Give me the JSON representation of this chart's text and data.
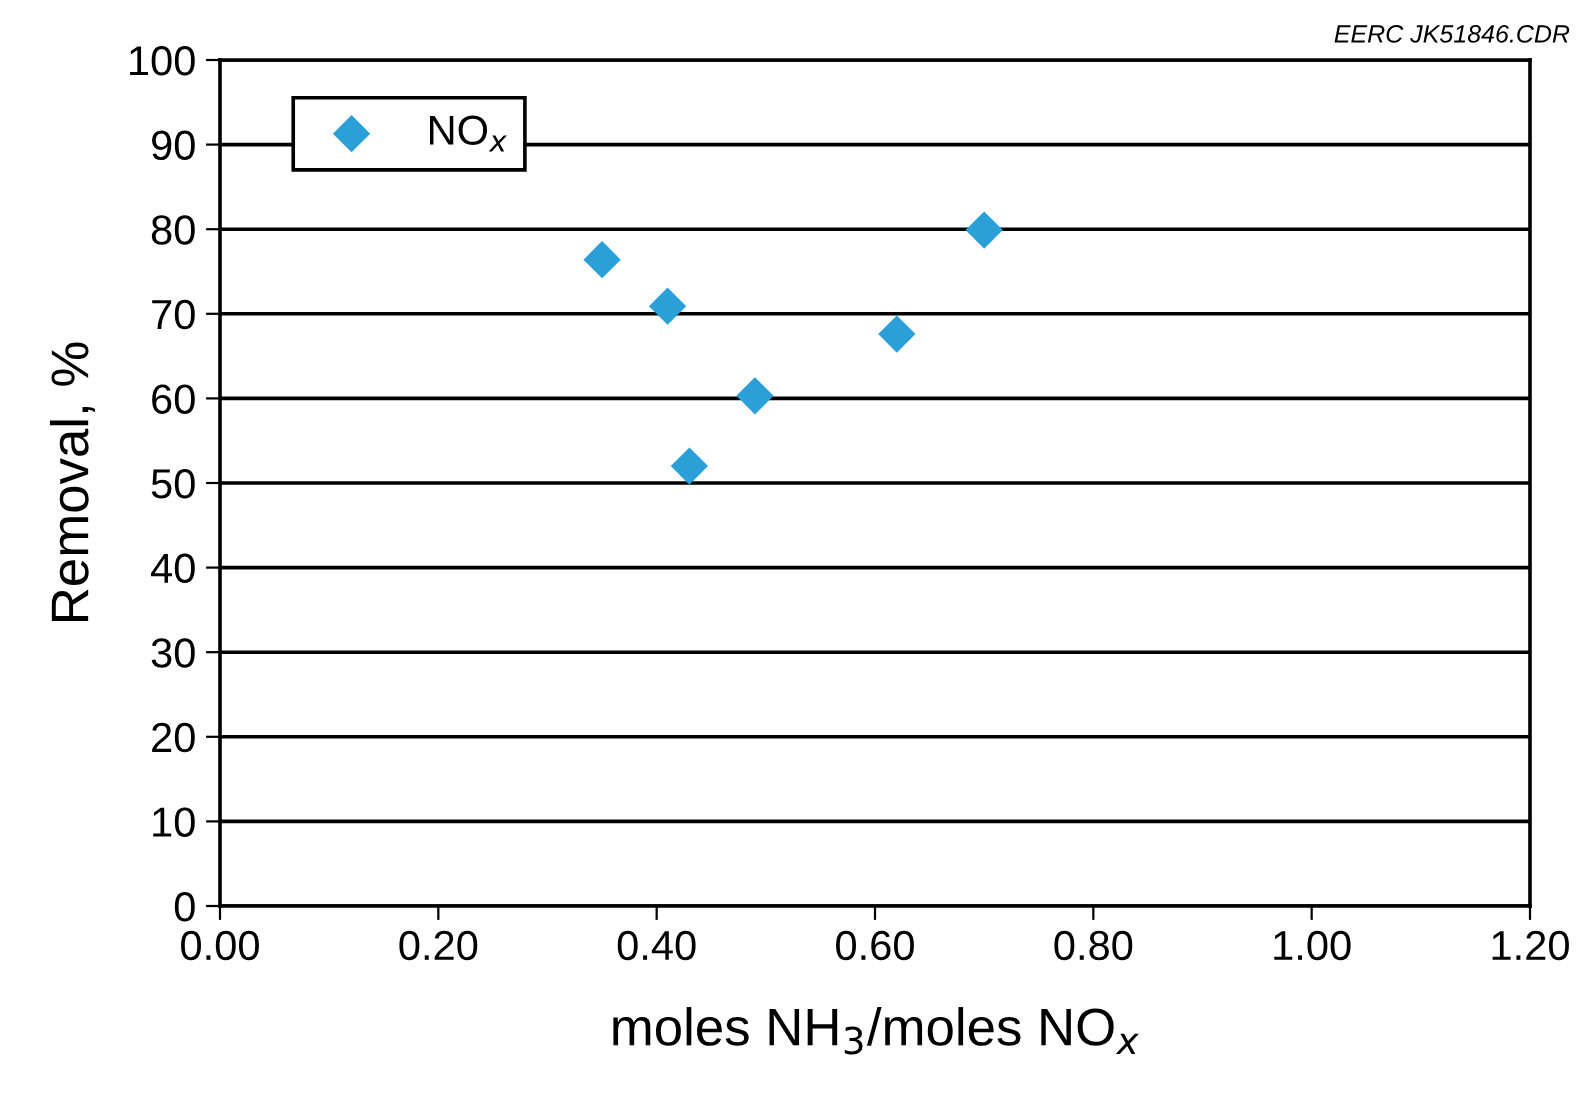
{
  "chart_data": {
    "type": "scatter",
    "xlabel": "moles NH$_{3}$/moles NO$_{x}$",
    "ylabel": "Removal, %",
    "annotations": [
      "EERC JK51846.CDR"
    ],
    "series": [
      {
        "name": "NO$_{x}$",
        "color": "#2a9fd8",
        "x": [
          0.35,
          0.41,
          0.43,
          0.49,
          0.62,
          0.7
        ],
        "values": [
          76.4,
          70.9,
          52.0,
          60.3,
          67.6,
          79.9
        ]
      }
    ],
    "xlim": [
      0,
      1.2
    ],
    "xticks": [
      {
        "value": 0,
        "label": "0.00"
      },
      {
        "value": 0.2,
        "label": "0.20"
      },
      {
        "value": 0.4,
        "label": "0.40"
      },
      {
        "value": 0.6,
        "label": "0.60"
      },
      {
        "value": 0.8,
        "label": "0.80"
      },
      {
        "value": 1.0,
        "label": "1.00"
      },
      {
        "value": 1.2,
        "label": "1.20"
      }
    ],
    "ylim": [
      0,
      100
    ],
    "yticks": [
      0,
      10,
      20,
      30,
      40,
      50,
      60,
      70,
      80,
      90,
      100
    ],
    "grid": "y",
    "legend": "top left",
    "marker": "diamond"
  }
}
